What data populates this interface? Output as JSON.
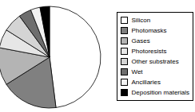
{
  "chart_data": {
    "type": "pie",
    "categories": [
      "Silicon",
      "Photomasks",
      "Gases",
      "Photoresists",
      "Other substrates",
      "Wet",
      "Ancillaries",
      "Deposition materials"
    ],
    "values": [
      48,
      18,
      12,
      6,
      6,
      4,
      3,
      3
    ],
    "colors": [
      "#ffffff",
      "#808080",
      "#b4b4b4",
      "#e6e6e6",
      "#d4d4d4",
      "#6e6e6e",
      "#f2f2f2",
      "#000000"
    ],
    "legend": "right"
  }
}
